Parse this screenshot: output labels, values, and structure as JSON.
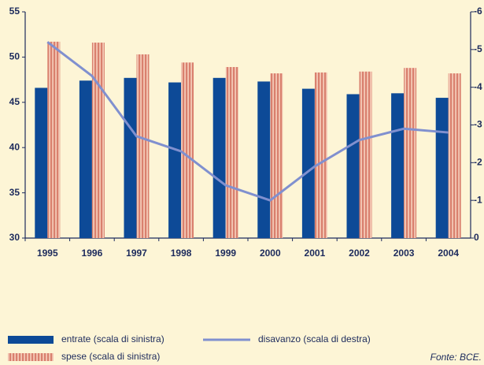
{
  "chart_data": {
    "type": "bar-line",
    "categories": [
      "1995",
      "1996",
      "1997",
      "1998",
      "1999",
      "2000",
      "2001",
      "2002",
      "2003",
      "2004"
    ],
    "series": [
      {
        "name": "entrate (scala di sinistra)",
        "color": "#0d4a97",
        "type": "bar",
        "values": [
          46.6,
          47.4,
          47.7,
          47.2,
          47.7,
          47.3,
          46.5,
          45.9,
          46.0,
          45.5
        ]
      },
      {
        "name": "spese (scala di sinistra)",
        "color": "#d9806e",
        "type": "bar",
        "pattern": "stripes",
        "values": [
          51.7,
          51.6,
          50.3,
          49.4,
          48.9,
          48.2,
          48.3,
          48.4,
          48.8,
          48.2
        ]
      },
      {
        "name": "disavanzo (scala di destra)",
        "color": "#8090cf",
        "type": "line",
        "axis": "y2",
        "values": [
          -5.2,
          -4.3,
          -2.7,
          -2.3,
          -1.4,
          -1.0,
          -1.9,
          -2.6,
          -2.9,
          -2.8
        ]
      }
    ],
    "ylim": [
      30,
      55
    ],
    "yticks": [
      30,
      35,
      40,
      45,
      50,
      55
    ],
    "y2lim": [
      0,
      -6
    ],
    "y2ticks": [
      0,
      -1,
      -2,
      -3,
      -4,
      -5,
      -6
    ],
    "source": "Fonte: BCE."
  }
}
